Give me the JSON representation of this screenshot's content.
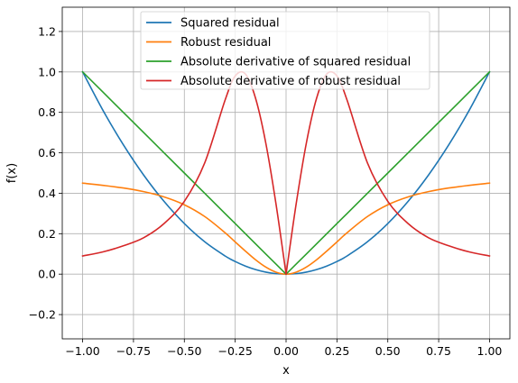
{
  "chart_data": {
    "type": "line",
    "title": "",
    "xlabel": "x",
    "ylabel": "f(x)",
    "xlim": [
      -1.1,
      1.1
    ],
    "ylim": [
      -0.32,
      1.32
    ],
    "grid": true,
    "legend_position": "top-center",
    "x_ticks": [
      -1.0,
      -0.75,
      -0.5,
      -0.25,
      0.0,
      0.25,
      0.5,
      0.75,
      1.0
    ],
    "x_tick_labels": [
      "−1.00",
      "−0.75",
      "−0.50",
      "−0.25",
      "0.00",
      "0.25",
      "0.50",
      "0.75",
      "1.00"
    ],
    "y_ticks": [
      -0.2,
      0.0,
      0.2,
      0.4,
      0.6,
      0.8,
      1.0,
      1.2
    ],
    "y_tick_labels": [
      "−0.2",
      "0.0",
      "0.2",
      "0.4",
      "0.6",
      "0.8",
      "1.0",
      "1.2"
    ],
    "x": [
      -1.0,
      -0.9,
      -0.8,
      -0.7,
      -0.6,
      -0.5,
      -0.4,
      -0.3,
      -0.25,
      -0.2,
      -0.15,
      -0.1,
      -0.05,
      0.0,
      0.05,
      0.1,
      0.15,
      0.2,
      0.25,
      0.3,
      0.4,
      0.5,
      0.6,
      0.7,
      0.8,
      0.9,
      1.0
    ],
    "series": [
      {
        "name": "Squared residual",
        "color": "#1f77b4",
        "values": [
          1.0,
          0.81,
          0.64,
          0.49,
          0.36,
          0.25,
          0.16,
          0.09,
          0.0625,
          0.04,
          0.0225,
          0.01,
          0.0025,
          0.0,
          0.0025,
          0.01,
          0.0225,
          0.04,
          0.0625,
          0.09,
          0.16,
          0.25,
          0.36,
          0.49,
          0.64,
          0.81,
          1.0
        ]
      },
      {
        "name": "Robust residual",
        "color": "#ff7f0e",
        "values": [
          0.45,
          0.439,
          0.426,
          0.408,
          0.382,
          0.343,
          0.285,
          0.205,
          0.159,
          0.114,
          0.071,
          0.035,
          0.01,
          0.0,
          0.01,
          0.035,
          0.071,
          0.114,
          0.159,
          0.205,
          0.285,
          0.343,
          0.382,
          0.408,
          0.426,
          0.439,
          0.45
        ]
      },
      {
        "name": "Absolute derivative of squared residual",
        "color": "#2ca02c",
        "values": [
          1.0,
          0.9,
          0.8,
          0.7,
          0.6,
          0.5,
          0.4,
          0.3,
          0.25,
          0.2,
          0.15,
          0.1,
          0.05,
          0.0,
          0.05,
          0.1,
          0.15,
          0.2,
          0.25,
          0.3,
          0.4,
          0.5,
          0.6,
          0.7,
          0.8,
          0.9,
          1.0
        ]
      },
      {
        "name": "Absolute derivative of robust residual",
        "color": "#d62728",
        "values": [
          0.09,
          0.11,
          0.14,
          0.18,
          0.25,
          0.36,
          0.55,
          0.86,
          0.98,
          0.99,
          0.87,
          0.65,
          0.35,
          0.0,
          0.35,
          0.65,
          0.87,
          0.99,
          0.98,
          0.86,
          0.55,
          0.36,
          0.25,
          0.18,
          0.14,
          0.11,
          0.09
        ]
      }
    ]
  }
}
